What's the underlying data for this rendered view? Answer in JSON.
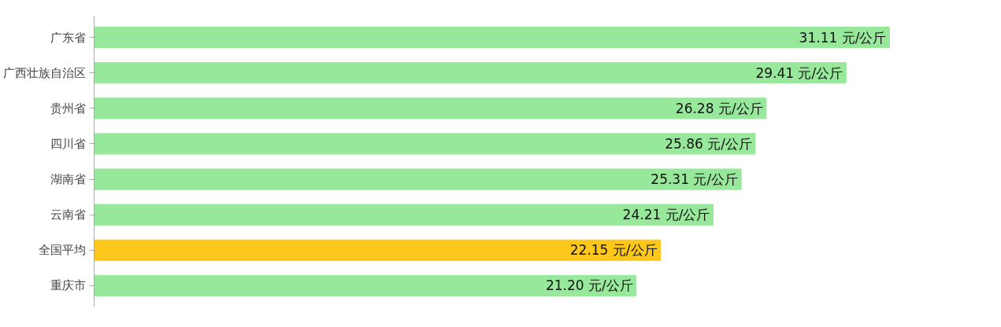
{
  "chart_data": {
    "type": "bar",
    "orientation": "horizontal",
    "categories": [
      "广东省",
      "广西壮族自治区",
      "贵州省",
      "四川省",
      "湖南省",
      "云南省",
      "全国平均",
      "重庆市"
    ],
    "values": [
      31.11,
      29.41,
      26.28,
      25.86,
      25.31,
      24.21,
      22.15,
      21.2
    ],
    "colors": [
      "#97e89b",
      "#97e89b",
      "#97e89b",
      "#97e89b",
      "#97e89b",
      "#97e89b",
      "#fdc71c",
      "#97e89b"
    ],
    "value_labels": [
      "31.11 元/公斤",
      "29.41 元/公斤",
      "26.28 元/公斤",
      "25.86 元/公斤",
      "25.31 元/公斤",
      "24.21 元/公斤",
      "22.15 元/公斤",
      "21.20 元/公斤"
    ],
    "grid": false
  }
}
